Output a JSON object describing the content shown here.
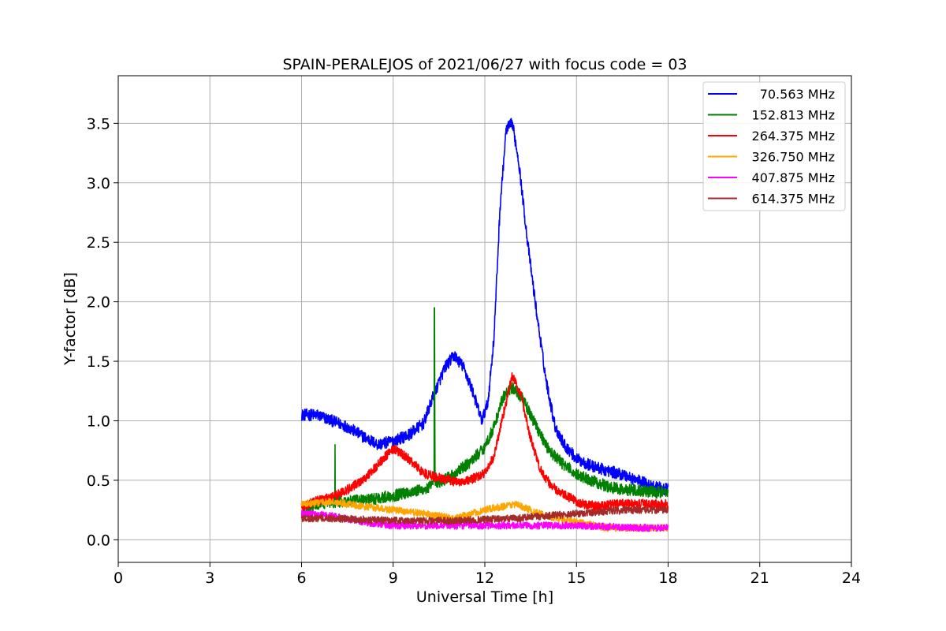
{
  "chart_data": {
    "type": "line",
    "title": "SPAIN-PERALEJOS of 2021/06/27 with focus code = 03",
    "xlabel": "Universal Time [h]",
    "ylabel": "Y-factor [dB]",
    "xlim": [
      0,
      24
    ],
    "ylim": [
      -0.19,
      3.9
    ],
    "xticks": [
      0,
      3,
      6,
      9,
      12,
      15,
      18,
      21,
      24
    ],
    "xtick_labels": [
      "0",
      "3",
      "6",
      "9",
      "12",
      "15",
      "18",
      "21",
      "24"
    ],
    "yticks": [
      0.0,
      0.5,
      1.0,
      1.5,
      2.0,
      2.5,
      3.0,
      3.5
    ],
    "ytick_labels": [
      "0.0",
      "0.5",
      "1.0",
      "1.5",
      "2.0",
      "2.5",
      "3.0",
      "3.5"
    ],
    "grid": true,
    "legend_position": "top-right",
    "series": [
      {
        "name": "70.563 MHz",
        "color": "#0000ff",
        "noise": 0.05,
        "x": [
          6.0,
          6.5,
          7.0,
          7.5,
          8.0,
          8.5,
          9.0,
          9.5,
          10.0,
          10.3,
          10.7,
          11.0,
          11.3,
          11.6,
          11.9,
          12.1,
          12.3,
          12.5,
          12.7,
          12.9,
          13.1,
          13.4,
          13.7,
          14.0,
          14.3,
          14.6,
          15.0,
          15.5,
          16.0,
          16.5,
          17.0,
          17.5,
          18.0
        ],
        "y": [
          1.05,
          1.05,
          1.0,
          0.95,
          0.87,
          0.8,
          0.83,
          0.88,
          0.98,
          1.2,
          1.45,
          1.55,
          1.45,
          1.25,
          1.0,
          1.15,
          1.7,
          2.8,
          3.45,
          3.5,
          3.2,
          2.5,
          1.9,
          1.35,
          0.95,
          0.8,
          0.68,
          0.62,
          0.58,
          0.55,
          0.5,
          0.45,
          0.42
        ]
      },
      {
        "name": "152.813 MHz",
        "color": "#008000",
        "noise": 0.05,
        "x": [
          6.0,
          6.5,
          7.0,
          7.5,
          8.0,
          8.5,
          9.0,
          9.5,
          10.0,
          10.5,
          11.0,
          11.5,
          12.0,
          12.3,
          12.6,
          12.9,
          13.2,
          13.5,
          13.8,
          14.1,
          14.5,
          15.0,
          15.5,
          16.0,
          16.5,
          17.0,
          17.5,
          18.0
        ],
        "y": [
          0.2,
          0.3,
          0.32,
          0.32,
          0.33,
          0.35,
          0.37,
          0.4,
          0.42,
          0.48,
          0.55,
          0.65,
          0.78,
          0.95,
          1.2,
          1.28,
          1.2,
          1.05,
          0.9,
          0.75,
          0.65,
          0.55,
          0.5,
          0.45,
          0.42,
          0.42,
          0.4,
          0.4
        ],
        "spikes": [
          [
            7.1,
            0.8
          ],
          [
            10.35,
            1.95
          ],
          [
            10.36,
            1.0
          ]
        ]
      },
      {
        "name": "264.375 MHz",
        "color": "#ff0000",
        "noise": 0.04,
        "x": [
          6.0,
          6.5,
          7.0,
          7.5,
          8.0,
          8.5,
          9.0,
          9.5,
          10.0,
          10.5,
          11.0,
          11.5,
          12.0,
          12.3,
          12.6,
          12.9,
          13.2,
          13.5,
          13.8,
          14.1,
          14.4,
          14.8,
          15.2,
          15.7,
          16.2,
          16.7,
          17.2,
          17.7,
          18.0
        ],
        "y": [
          0.28,
          0.33,
          0.36,
          0.42,
          0.5,
          0.63,
          0.77,
          0.68,
          0.56,
          0.52,
          0.49,
          0.5,
          0.56,
          0.7,
          1.05,
          1.38,
          1.2,
          0.85,
          0.6,
          0.48,
          0.4,
          0.35,
          0.3,
          0.28,
          0.3,
          0.3,
          0.3,
          0.3,
          0.3
        ]
      },
      {
        "name": "326.750 MHz",
        "color": "#ffa500",
        "noise": 0.03,
        "x": [
          6.0,
          7.0,
          8.0,
          9.0,
          10.0,
          11.0,
          12.0,
          13.0,
          14.0,
          15.0,
          16.0,
          17.0,
          18.0
        ],
        "y": [
          0.3,
          0.32,
          0.28,
          0.25,
          0.22,
          0.18,
          0.25,
          0.3,
          0.2,
          0.15,
          0.1,
          0.1,
          0.1
        ]
      },
      {
        "name": "407.875 MHz",
        "color": "#ff00ff",
        "noise": 0.03,
        "x": [
          6.0,
          7.0,
          8.0,
          9.0,
          10.0,
          11.0,
          12.0,
          13.0,
          14.0,
          15.0,
          16.0,
          17.0,
          18.0
        ],
        "y": [
          0.22,
          0.2,
          0.15,
          0.12,
          0.12,
          0.12,
          0.12,
          0.12,
          0.12,
          0.12,
          0.11,
          0.1,
          0.1
        ]
      },
      {
        "name": "614.375 MHz",
        "color": "#a52a2a",
        "noise": 0.03,
        "x": [
          6.0,
          7.0,
          8.0,
          9.0,
          10.0,
          11.0,
          12.0,
          13.0,
          14.0,
          15.0,
          16.0,
          17.0,
          18.0
        ],
        "y": [
          0.18,
          0.18,
          0.17,
          0.16,
          0.16,
          0.16,
          0.17,
          0.18,
          0.2,
          0.22,
          0.24,
          0.25,
          0.25
        ]
      }
    ]
  }
}
